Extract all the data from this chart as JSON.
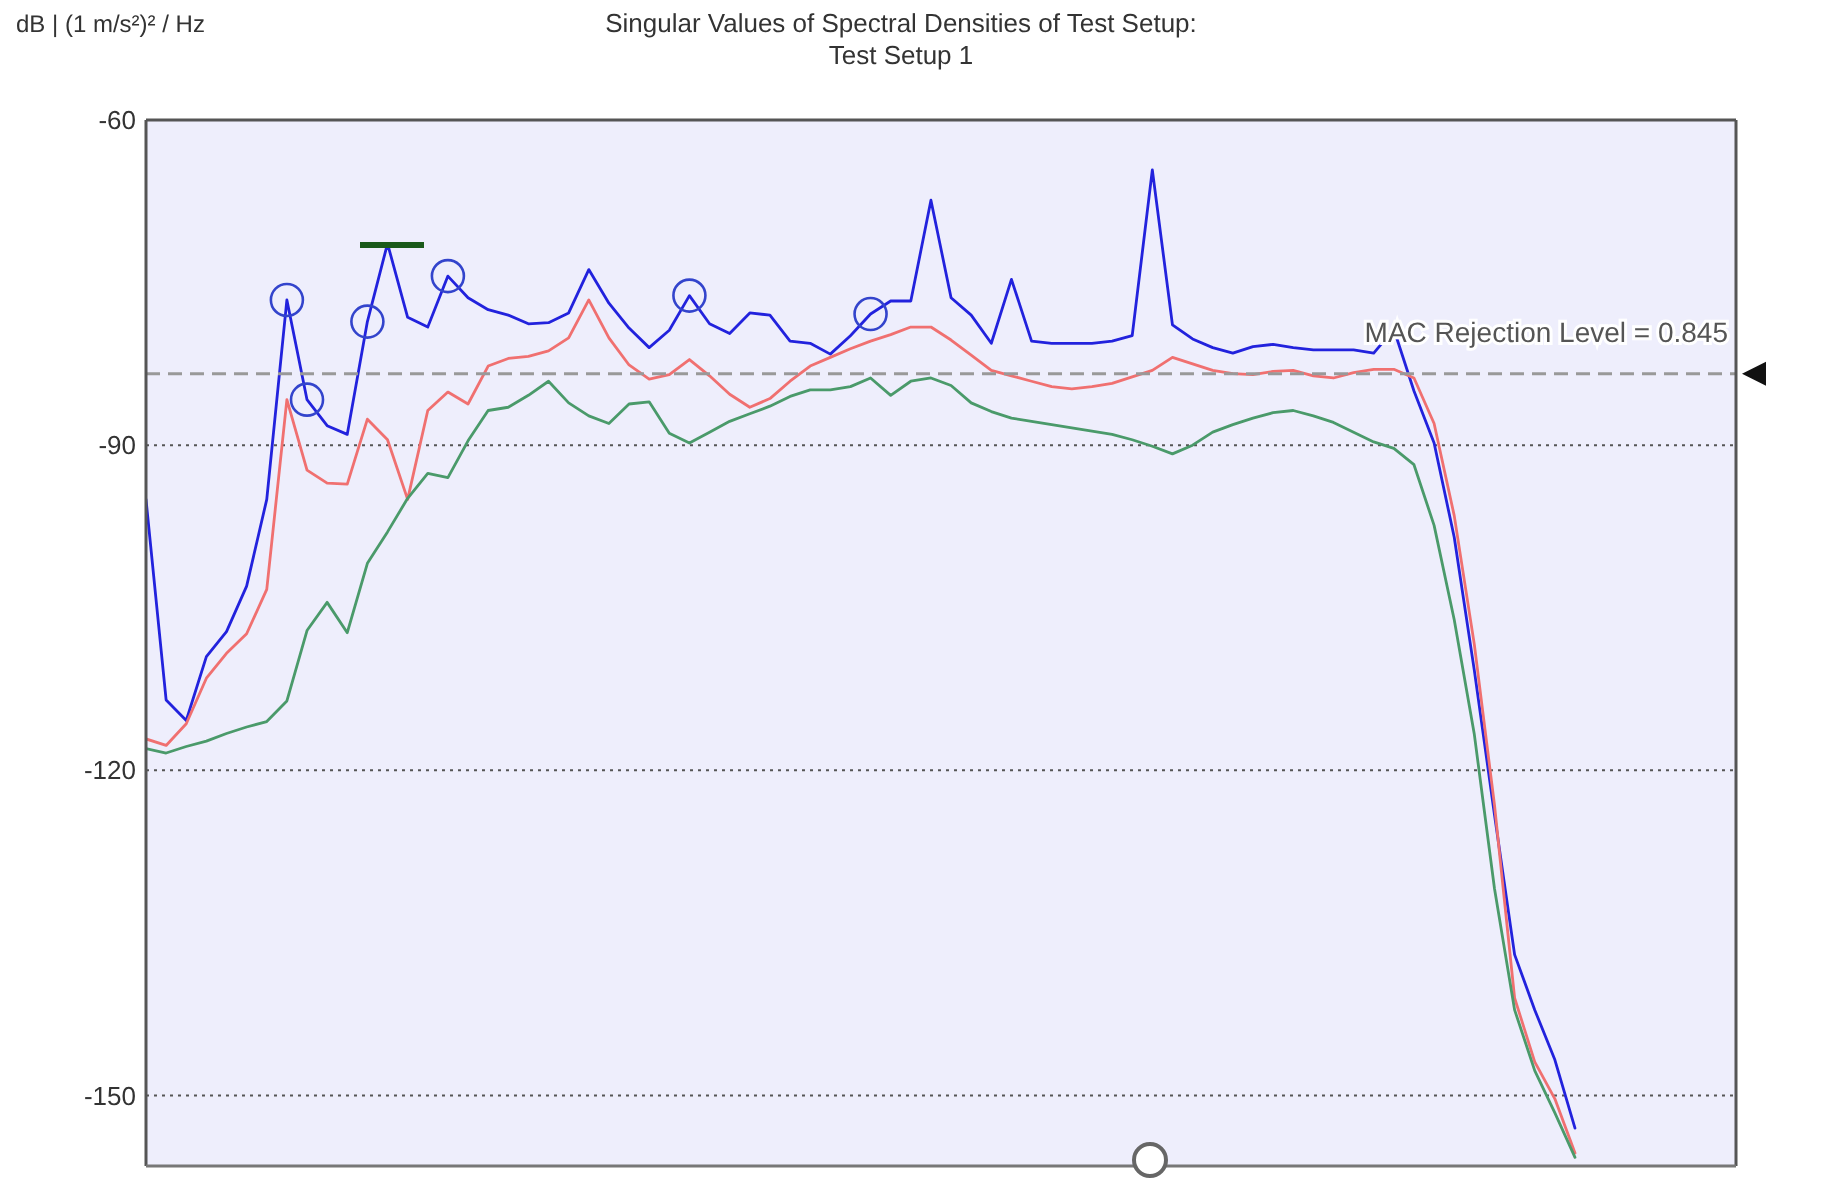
{
  "chart_data": {
    "type": "line",
    "title": "Singular Values of Spectral Densities of Test Setup:",
    "subtitle": "Test Setup 1",
    "ylabel": "dB | (1 m/s²)² / Hz",
    "categories": [
      null,
      null,
      null,
      null,
      null,
      null,
      null,
      null,
      null,
      null,
      null,
      null,
      null,
      null,
      null,
      null,
      null,
      null,
      null,
      null,
      null,
      null,
      null,
      null,
      null,
      null,
      null,
      null,
      null,
      null,
      null,
      null,
      null,
      null,
      null,
      null,
      null,
      null,
      null,
      null,
      null,
      null,
      null,
      null,
      null,
      null,
      null,
      null,
      null,
      null,
      null,
      null,
      null,
      null,
      null,
      null,
      null,
      null,
      null,
      null,
      null,
      null,
      null,
      null,
      null,
      null,
      null,
      null,
      null,
      null,
      null,
      null,
      null,
      null,
      null,
      null,
      null,
      null,
      null,
      null
    ],
    "ylim": [
      -156.5,
      -60
    ],
    "yticks": [
      -60,
      -90,
      -120,
      -150
    ],
    "grid": "y",
    "marker": "none",
    "series": [
      {
        "color": "#2222dd",
        "values": [
          -95.0,
          -113.5,
          -115.4,
          -109.5,
          -107.2,
          -103.0,
          -95.0,
          -76.6,
          -85.8,
          -88.2,
          -89.0,
          -78.6,
          -71.4,
          -78.2,
          -79.1,
          -74.4,
          -76.4,
          -77.5,
          -78.0,
          -78.8,
          -78.7,
          -77.8,
          -73.8,
          -76.9,
          -79.2,
          -81.0,
          -79.4,
          -76.2,
          -78.8,
          -79.7,
          -77.8,
          -78.0,
          -80.4,
          -80.6,
          -81.6,
          -79.9,
          -77.9,
          -76.7,
          -76.7,
          -67.4,
          -76.4,
          -78.0,
          -80.6,
          -74.7,
          -80.4,
          -80.6,
          -80.6,
          -80.6,
          -80.4,
          -79.9,
          -64.6,
          -78.9,
          -80.2,
          -81.0,
          -81.5,
          -80.9,
          -80.7,
          -81.0,
          -81.2,
          -81.2,
          -81.2,
          -81.5,
          -79.3,
          -85.0,
          -89.8,
          -98.5,
          -110.8,
          -124.1,
          -137.0,
          -142.1,
          -146.7,
          -153.0,
          null,
          null,
          null,
          null,
          null,
          null,
          null,
          null
        ]
      },
      {
        "color": "#f07070",
        "values": [
          -117.1,
          -117.7,
          -115.7,
          -111.5,
          -109.2,
          -107.4,
          -103.3,
          -85.8,
          -92.3,
          -93.5,
          -93.6,
          -87.6,
          -89.5,
          -95.0,
          -86.8,
          -85.1,
          -86.2,
          -82.7,
          -82.0,
          -81.8,
          -81.3,
          -80.1,
          -76.6,
          -80.1,
          -82.6,
          -83.9,
          -83.5,
          -82.1,
          -83.6,
          -85.3,
          -86.5,
          -85.7,
          -84.1,
          -82.7,
          -81.9,
          -81.1,
          -80.4,
          -79.8,
          -79.1,
          -79.1,
          -80.3,
          -81.7,
          -83.1,
          -83.6,
          -84.1,
          -84.6,
          -84.8,
          -84.6,
          -84.3,
          -83.7,
          -83.1,
          -81.9,
          -82.5,
          -83.1,
          -83.4,
          -83.5,
          -83.2,
          -83.1,
          -83.6,
          -83.8,
          -83.3,
          -83.0,
          -83.0,
          -83.8,
          -88.0,
          -96.5,
          -108.4,
          -123.2,
          -141.0,
          -146.9,
          -150.3,
          -155.3,
          null,
          null,
          null,
          null,
          null,
          null,
          null,
          null
        ]
      },
      {
        "color": "#4a9a6a",
        "values": [
          -118.0,
          -118.4,
          -117.8,
          -117.3,
          -116.6,
          -116.0,
          -115.5,
          -113.6,
          -107.1,
          -104.5,
          -107.3,
          -100.9,
          -98.0,
          -94.9,
          -92.6,
          -93.0,
          -89.6,
          -86.8,
          -86.5,
          -85.4,
          -84.1,
          -86.1,
          -87.3,
          -88.0,
          -86.2,
          -86.0,
          -88.9,
          -89.8,
          -88.8,
          -87.8,
          -87.1,
          -86.4,
          -85.5,
          -84.9,
          -84.9,
          -84.6,
          -83.8,
          -85.4,
          -84.1,
          -83.8,
          -84.5,
          -86.1,
          -86.9,
          -87.5,
          -87.8,
          -88.1,
          -88.4,
          -88.7,
          -89.0,
          -89.5,
          -90.1,
          -90.8,
          -90.0,
          -88.8,
          -88.1,
          -87.5,
          -87.0,
          -86.8,
          -87.3,
          -87.9,
          -88.8,
          -89.7,
          -90.3,
          -91.8,
          -97.4,
          -106.1,
          -116.7,
          -130.9,
          -142.1,
          -147.7,
          -151.6,
          -155.7,
          null,
          null,
          null,
          null,
          null,
          null,
          null,
          null
        ]
      },
      {
        "type": "scatter",
        "marker": "circle",
        "color": "#3344cc",
        "values": [
          null,
          null,
          null,
          null,
          null,
          null,
          null,
          -76.6,
          -85.8,
          null,
          null,
          -78.6,
          null,
          null,
          null,
          -74.4,
          null,
          null,
          null,
          null,
          null,
          null,
          null,
          null,
          null,
          null,
          null,
          -76.2,
          null,
          null,
          null,
          null,
          null,
          null,
          null,
          null,
          -77.9,
          null,
          null,
          null,
          null,
          null,
          null,
          null,
          null,
          null,
          null,
          null,
          null,
          null,
          null,
          null,
          null,
          null,
          null,
          null,
          null,
          null,
          null,
          null,
          null,
          null,
          null,
          null,
          null,
          null,
          null,
          null,
          null,
          null,
          null,
          null,
          null,
          null,
          null,
          null,
          null,
          null,
          null,
          null
        ]
      }
    ],
    "ref_lines": [
      {
        "axis": "y",
        "value": -83.4,
        "color": "#999999",
        "line_style": "dashed"
      }
    ],
    "annotations": [
      "MAC Rejection Level = 0.845"
    ]
  }
}
